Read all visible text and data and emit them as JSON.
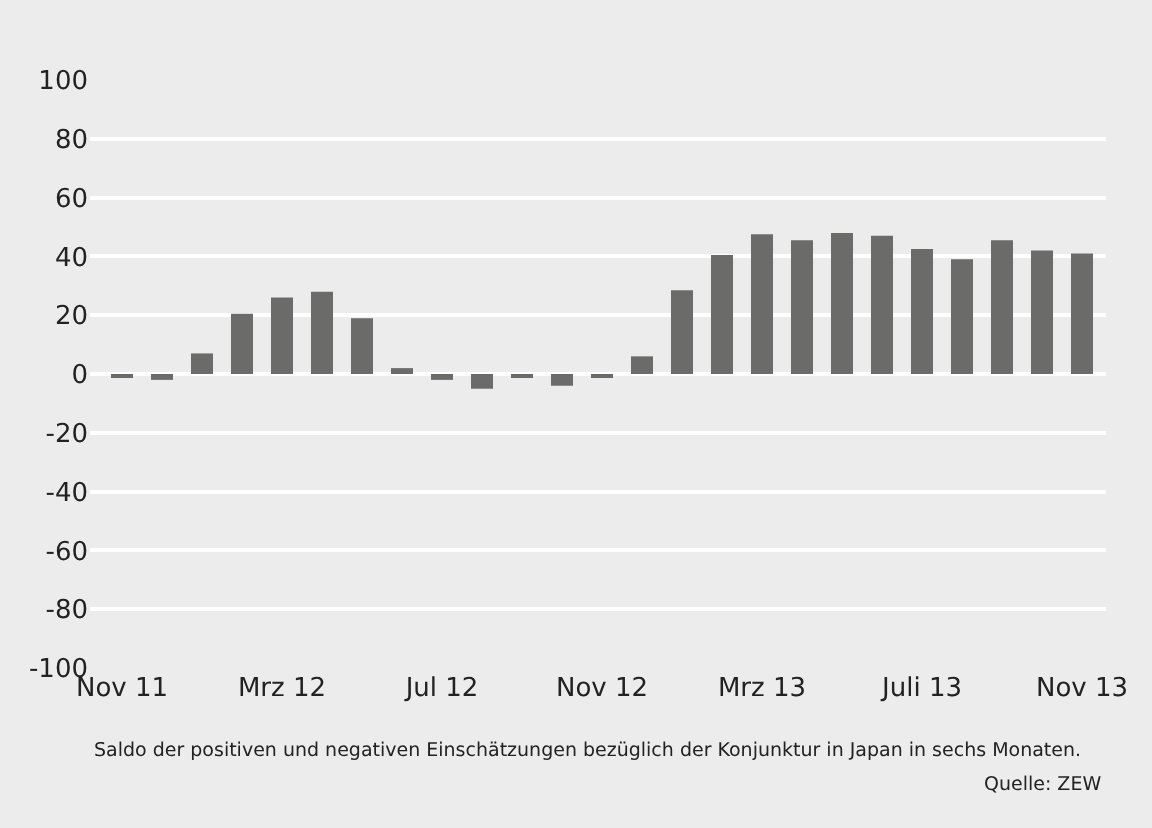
{
  "chart_data": {
    "type": "bar",
    "categories": [
      "Nov 11",
      null,
      null,
      null,
      "Mrz 12",
      null,
      null,
      null,
      "Jul 12",
      null,
      null,
      null,
      "Nov 12",
      null,
      null,
      null,
      "Mrz 13",
      null,
      null,
      null,
      "Juli 13",
      null,
      null,
      null,
      "Nov 13"
    ],
    "values": [
      -1,
      -2,
      7,
      20.5,
      26,
      28,
      19,
      2,
      -2,
      -5,
      -1,
      -4,
      -1,
      6,
      28.5,
      40.5,
      47.5,
      45.5,
      48,
      47,
      42.5,
      39,
      45.5,
      42,
      41
    ],
    "color": "#6b6b6a",
    "ylim": [
      -100,
      100
    ],
    "yticks": [
      -100,
      -80,
      -60,
      -40,
      -20,
      0,
      20,
      40,
      60,
      80,
      100
    ],
    "grid": "y",
    "annotations": [
      "Saldo der positiven und negativen Einschätzungen bezüglich der Konjunktur in Japan in sechs Monaten.",
      "Quelle: ZEW"
    ]
  }
}
